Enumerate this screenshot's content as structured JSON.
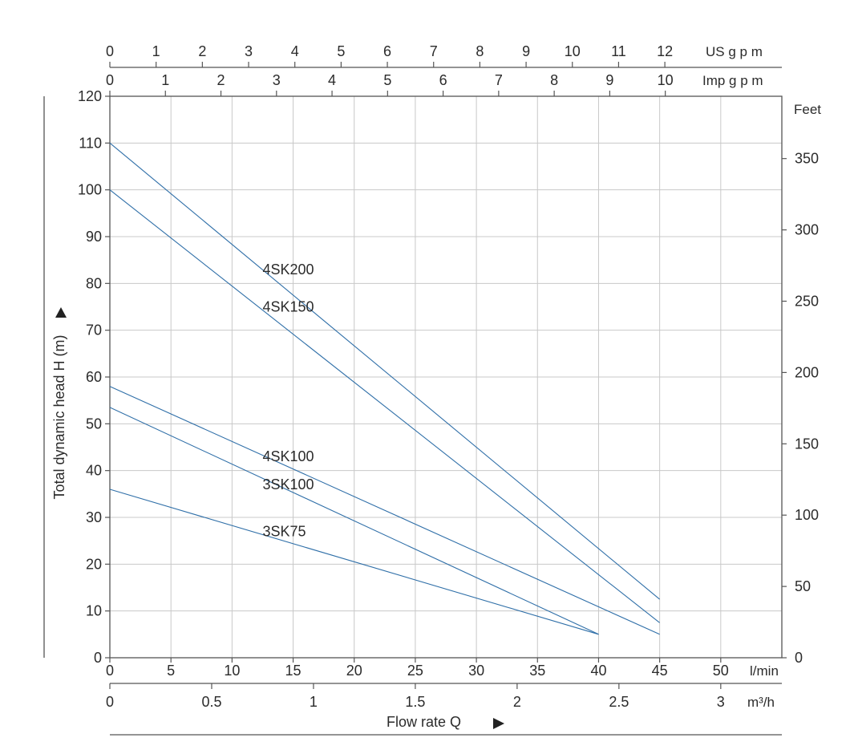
{
  "chart_data": {
    "type": "line",
    "title": "",
    "xlabel": "Flow rate Q",
    "ylabel": "Total dynamic head H (m)",
    "xlim": [
      0,
      55
    ],
    "ylim": [
      0,
      120
    ],
    "grid": true,
    "legend": "inline labels on curves",
    "colors": {
      "curve": "#2f6fa8",
      "grid": "#c8c8c8",
      "axis": "#555555"
    },
    "x_primary": {
      "unit": "l/min",
      "ticks": [
        0,
        5,
        10,
        15,
        20,
        25,
        30,
        35,
        40,
        45,
        50
      ],
      "tick_labels": [
        "0",
        "5",
        "10",
        "15",
        "20",
        "25",
        "30",
        "35",
        "40",
        "45",
        "50"
      ]
    },
    "x_m3h": {
      "unit": "m³/h",
      "ticks": [
        0,
        0.5,
        1,
        1.5,
        2,
        2.5,
        3
      ],
      "tick_labels": [
        "0",
        "0.5",
        "1",
        "1.5",
        "2",
        "2.5",
        "3"
      ]
    },
    "x_usgpm": {
      "unit": "US g p m",
      "ticks": [
        0,
        1,
        2,
        3,
        4,
        5,
        6,
        7,
        8,
        9,
        10,
        11,
        12
      ],
      "tick_labels": [
        "0",
        "1",
        "2",
        "3",
        "4",
        "5",
        "6",
        "7",
        "8",
        "9",
        "10",
        "11",
        "12"
      ]
    },
    "x_impgpm": {
      "unit": "Imp g p m",
      "ticks": [
        0,
        1,
        2,
        3,
        4,
        5,
        6,
        7,
        8,
        9,
        10
      ],
      "tick_labels": [
        "0",
        "1",
        "2",
        "3",
        "4",
        "5",
        "6",
        "7",
        "8",
        "9",
        "10"
      ]
    },
    "y_primary": {
      "ticks": [
        0,
        10,
        20,
        30,
        40,
        50,
        60,
        70,
        80,
        90,
        100,
        110,
        120
      ],
      "tick_labels": [
        "0",
        "10",
        "20",
        "30",
        "40",
        "50",
        "60",
        "70",
        "80",
        "90",
        "100",
        "110",
        "120"
      ]
    },
    "y_feet": {
      "unit": "Feet",
      "ticks": [
        0,
        50,
        100,
        150,
        200,
        250,
        300,
        350
      ],
      "tick_labels": [
        "0",
        "50",
        "100",
        "150",
        "200",
        "250",
        "300",
        "350"
      ]
    },
    "series": [
      {
        "name": "4SK200",
        "points": [
          [
            0,
            110
          ],
          [
            45,
            12.5
          ]
        ],
        "label_at": [
          12.5,
          83
        ]
      },
      {
        "name": "4SK150",
        "points": [
          [
            0,
            100
          ],
          [
            45,
            7.5
          ]
        ],
        "label_at": [
          12.5,
          75
        ]
      },
      {
        "name": "4SK100",
        "points": [
          [
            0,
            58
          ],
          [
            45,
            5
          ]
        ],
        "label_at": [
          12.5,
          43
        ]
      },
      {
        "name": "3SK100",
        "points": [
          [
            0,
            53.5
          ],
          [
            40,
            5
          ]
        ],
        "label_at": [
          12.5,
          37
        ]
      },
      {
        "name": "3SK75",
        "points": [
          [
            0,
            36
          ],
          [
            40,
            5
          ]
        ],
        "label_at": [
          12.5,
          27
        ]
      }
    ]
  }
}
